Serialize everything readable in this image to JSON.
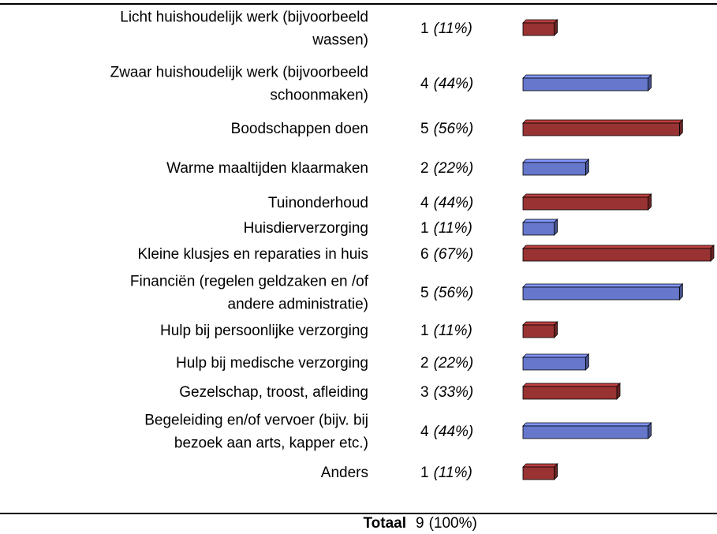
{
  "chart_data": {
    "type": "bar",
    "orientation": "horizontal",
    "categories": [
      [
        "Licht huishoudelijk werk (bijvoorbeeld",
        "wassen)"
      ],
      [
        "Zwaar huishoudelijk werk (bijvoorbeeld",
        "schoonmaken)"
      ],
      [
        "Boodschappen doen"
      ],
      [
        "Warme maaltijden klaarmaken"
      ],
      [
        "Tuinonderhoud"
      ],
      [
        "Huisdierverzorging"
      ],
      [
        "Kleine klusjes en reparaties in huis"
      ],
      [
        "Financiën (regelen geldzaken en /of",
        "andere administratie)"
      ],
      [
        "Hulp bij persoonlijke verzorging"
      ],
      [
        "Hulp bij medische verzorging"
      ],
      [
        "Gezelschap, troost, afleiding"
      ],
      [
        "Begeleiding en/of vervoer (bijv. bij",
        "bezoek aan arts, kapper etc.)"
      ],
      [
        "Anders"
      ]
    ],
    "values": [
      1,
      4,
      5,
      2,
      4,
      1,
      6,
      5,
      1,
      2,
      3,
      4,
      1
    ],
    "percent_labels": [
      "(11%)",
      "(44%)",
      "(56%)",
      "(22%)",
      "(44%)",
      "(11%)",
      "(67%)",
      "(56%)",
      "(11%)",
      "(22%)",
      "(33%)",
      "(44%)",
      "(11%)"
    ],
    "colors": [
      "#993333",
      "#6677cc",
      "#993333",
      "#6677cc",
      "#993333",
      "#6677cc",
      "#993333",
      "#6677cc",
      "#993333",
      "#6677cc",
      "#993333",
      "#6677cc",
      "#993333"
    ],
    "total_label": "Totaal",
    "total": 9,
    "total_percent_label": "(100%)"
  }
}
